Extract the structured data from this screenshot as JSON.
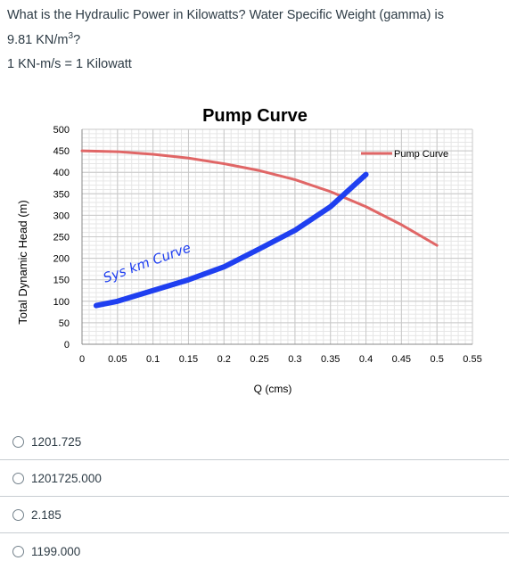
{
  "question": {
    "line1": "What is the Hydraulic Power in Kilowatts? Water Specific Weight (gamma) is",
    "line2_prefix": "9.81 KN/m",
    "line2_sup": "3",
    "line2_suffix": "?",
    "conversion": "1 KN-m/s = 1 Kilowatt"
  },
  "chart_data": {
    "type": "line",
    "title": "Pump Curve",
    "xlabel": "Q (cms)",
    "ylabel": "Total Dynamic Head (m)",
    "xlim": [
      0,
      0.55
    ],
    "ylim": [
      0,
      500
    ],
    "x_ticks": [
      "0",
      "0.05",
      "0.1",
      "0.15",
      "0.2",
      "0.25",
      "0.3",
      "0.35",
      "0.4",
      "0.45",
      "0.5",
      "0.55"
    ],
    "y_ticks": [
      "0",
      "50",
      "100",
      "150",
      "200",
      "250",
      "300",
      "350",
      "400",
      "450",
      "500"
    ],
    "grid": true,
    "legend": "top-right",
    "series": [
      {
        "name": "Pump Curve",
        "color": "#e06666",
        "x": [
          0,
          0.05,
          0.1,
          0.15,
          0.2,
          0.25,
          0.3,
          0.35,
          0.4,
          0.45,
          0.5
        ],
        "y": [
          450,
          448,
          442,
          433,
          420,
          404,
          383,
          355,
          320,
          278,
          230
        ]
      },
      {
        "color": "#1f3ff0",
        "x": [
          0.02,
          0.05,
          0.1,
          0.15,
          0.2,
          0.25,
          0.3,
          0.35,
          0.4
        ],
        "y": [
          90,
          100,
          125,
          150,
          180,
          222,
          265,
          320,
          395
        ]
      }
    ],
    "annotation": "Sys km Curve"
  },
  "options": [
    {
      "label": "1201.725"
    },
    {
      "label": "1201725.000"
    },
    {
      "label": "2.185"
    },
    {
      "label": "1199.000"
    }
  ]
}
